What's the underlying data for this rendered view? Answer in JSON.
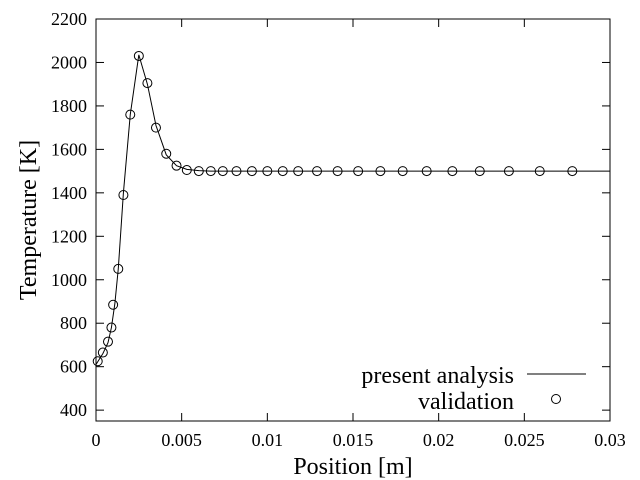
{
  "chart_data": {
    "type": "line",
    "title": "",
    "xlabel": "Position [m]",
    "ylabel": "Temperature [K]",
    "xlim": [
      0,
      0.03
    ],
    "ylim": [
      350,
      2200
    ],
    "grid": false,
    "legend_position": "bottom-right",
    "xticks": [
      0,
      0.005,
      0.01,
      0.015,
      0.02,
      0.025,
      0.03
    ],
    "xtick_labels": [
      "0",
      "0.005",
      "0.01",
      "0.015",
      "0.02",
      "0.025",
      "0.03"
    ],
    "yticks": [
      400,
      600,
      800,
      1000,
      1200,
      1400,
      1600,
      1800,
      2000,
      2200
    ],
    "ytick_labels": [
      "400",
      "600",
      "800",
      "1000",
      "1200",
      "1400",
      "1600",
      "1800",
      "2000",
      "2200"
    ],
    "series": [
      {
        "name": "present analysis",
        "style": "line",
        "color": "#000000",
        "x": [
          0,
          0.0004,
          0.0007,
          0.0009,
          0.0011,
          0.0013,
          0.0016,
          0.002,
          0.0025,
          0.003,
          0.0035,
          0.0041,
          0.0047,
          0.0053,
          0.006,
          0.0067,
          0.0075,
          0.009,
          0.012,
          0.015,
          0.02,
          0.025,
          0.03
        ],
        "y": [
          610,
          660,
          710,
          780,
          890,
          1050,
          1400,
          1760,
          2035,
          1900,
          1710,
          1575,
          1525,
          1508,
          1502,
          1500,
          1500,
          1500,
          1500,
          1500,
          1500,
          1500,
          1500
        ]
      },
      {
        "name": "validation",
        "style": "markers",
        "marker": "open-circle",
        "color": "#000000",
        "x": [
          0.0001,
          0.0004,
          0.0007,
          0.0009,
          0.001,
          0.0013,
          0.0016,
          0.002,
          0.0025,
          0.003,
          0.0035,
          0.0041,
          0.0047,
          0.0053,
          0.006,
          0.0067,
          0.0074,
          0.0082,
          0.0091,
          0.01,
          0.0109,
          0.0118,
          0.0129,
          0.0141,
          0.0153,
          0.0166,
          0.0179,
          0.0193,
          0.0208,
          0.0224,
          0.0241,
          0.0259,
          0.0278
        ],
        "y": [
          625,
          665,
          715,
          780,
          885,
          1050,
          1390,
          1760,
          2030,
          1905,
          1700,
          1580,
          1525,
          1505,
          1500,
          1500,
          1500,
          1500,
          1500,
          1500,
          1500,
          1500,
          1500,
          1500,
          1500,
          1500,
          1500,
          1500,
          1500,
          1500,
          1500,
          1500,
          1500
        ]
      }
    ]
  }
}
